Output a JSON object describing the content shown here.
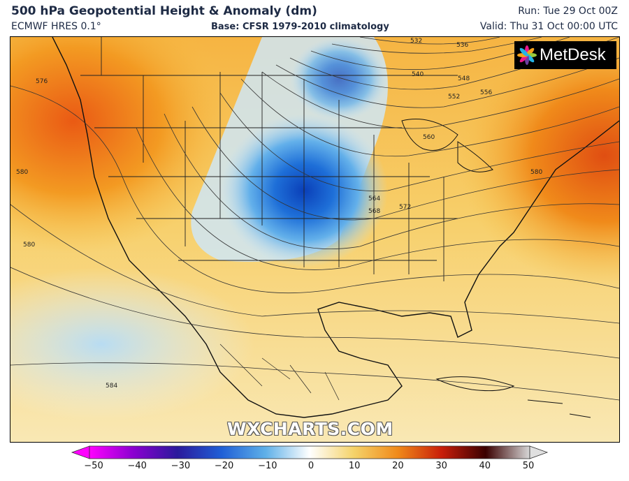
{
  "header": {
    "title": "500 hPa Geopotential Height & Anomaly (dm)",
    "model": "ECMWF HRES 0.1°",
    "base": "Base: CFSR 1979-2010 climatology",
    "run": "Run: Tue 29 Oct 00Z",
    "valid": "Valid: Thu 31 Oct 00:00 UTC"
  },
  "branding": {
    "logo_text": "MetDesk",
    "watermark": "WXCHARTS.COM"
  },
  "contour_labels": [
    "532",
    "536",
    "540",
    "548",
    "552",
    "556",
    "560",
    "564",
    "568",
    "572",
    "576",
    "580",
    "580",
    "580",
    "584"
  ],
  "colorbar": {
    "ticks": [
      "−50",
      "−40",
      "−30",
      "−20",
      "−10",
      "0",
      "10",
      "20",
      "30",
      "40",
      "50"
    ],
    "colors": [
      "#ff00ff",
      "#7a00c0",
      "#1a1a8c",
      "#1f5fd6",
      "#5fb0e8",
      "#ffffff",
      "#f5d36a",
      "#f08a1a",
      "#c81e0a",
      "#3a0000",
      "#c8c8c8"
    ]
  }
}
